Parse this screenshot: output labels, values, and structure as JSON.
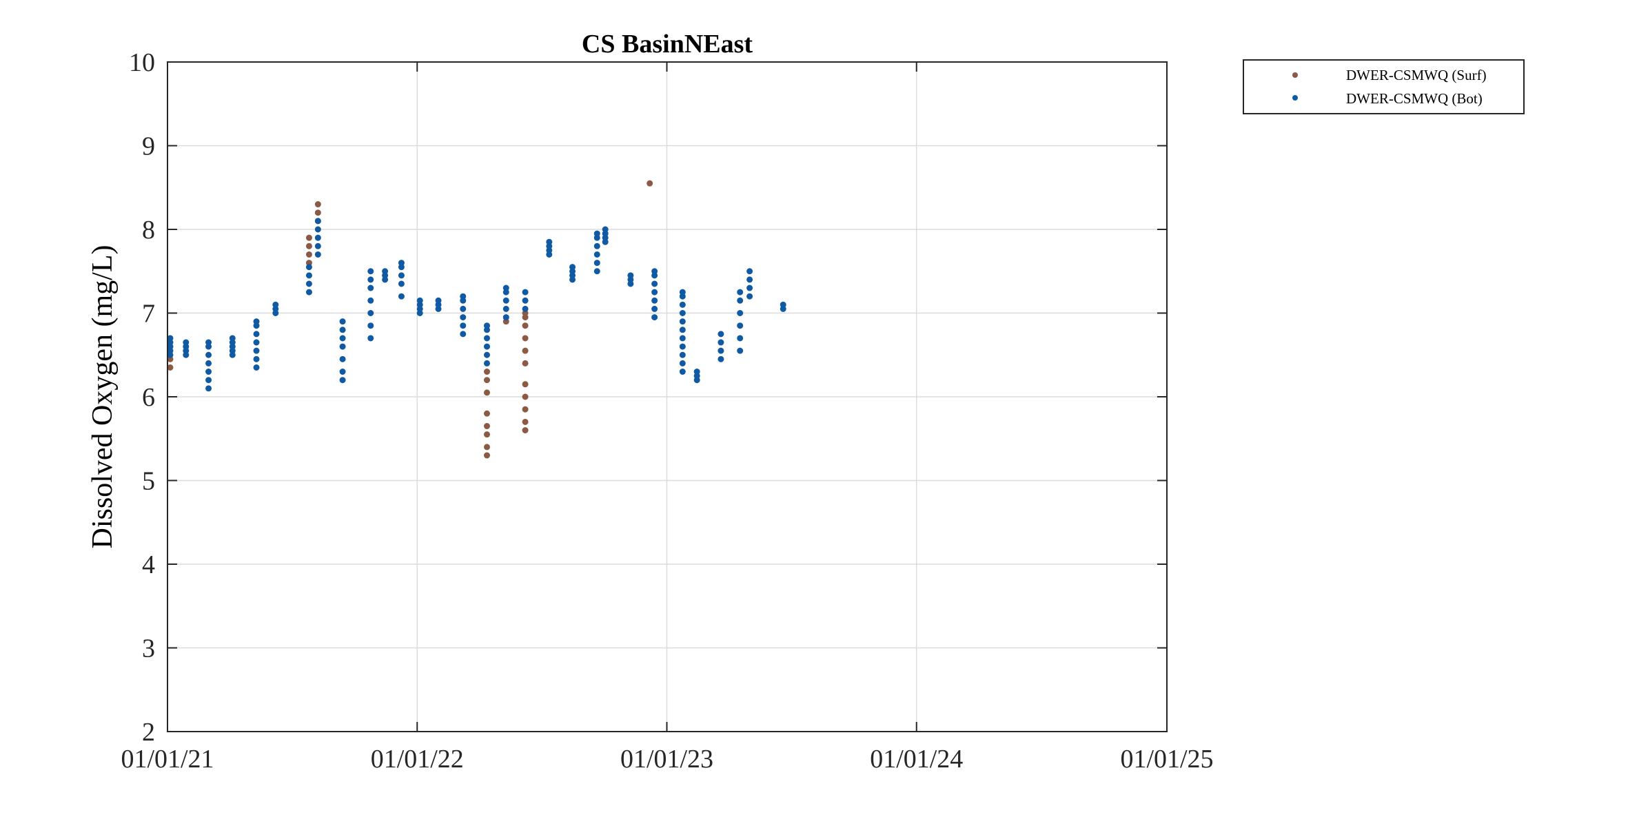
{
  "chart_data": {
    "type": "scatter",
    "title": "CS BasinNEast",
    "xlabel": "",
    "ylabel": "Dissolved Oxygen (mg/L)",
    "xlim": [
      "2021-01-01",
      "2025-01-01"
    ],
    "ylim": [
      2,
      10
    ],
    "x_ticks": [
      "2021-01-01",
      "2022-01-01",
      "2023-01-01",
      "2024-01-01",
      "2025-01-01"
    ],
    "x_tick_labels": [
      "01/01/21",
      "01/01/22",
      "01/01/23",
      "01/01/24",
      "01/01/25"
    ],
    "y_ticks": [
      2,
      3,
      4,
      5,
      6,
      7,
      8,
      9,
      10
    ],
    "y_tick_labels": [
      "2",
      "3",
      "4",
      "5",
      "6",
      "7",
      "8",
      "9",
      "10"
    ],
    "grid": true,
    "legend_position": "outside-top-right",
    "series": [
      {
        "name": "DWER-CSMWQ (Surf)",
        "color": "#8c5a44",
        "points": [
          {
            "x": "2021-01-05",
            "ys": [
              6.35,
              6.45
            ]
          },
          {
            "x": "2021-07-27",
            "ys": [
              7.6,
              7.7,
              7.8,
              7.9
            ]
          },
          {
            "x": "2021-08-09",
            "ys": [
              8.1,
              8.2,
              8.3
            ]
          },
          {
            "x": "2022-04-13",
            "ys": [
              5.3,
              5.4,
              5.55,
              5.65,
              5.8,
              6.05,
              6.2,
              6.3
            ]
          },
          {
            "x": "2022-05-11",
            "ys": [
              6.9
            ]
          },
          {
            "x": "2022-06-08",
            "ys": [
              5.6,
              5.7,
              5.85,
              6.0,
              6.15,
              6.4,
              6.55,
              6.7,
              6.85,
              6.95,
              7.0
            ]
          },
          {
            "x": "2022-12-07",
            "ys": [
              8.55
            ]
          }
        ]
      },
      {
        "name": "DWER-CSMWQ (Bot)",
        "color": "#0f5aa3",
        "points": [
          {
            "x": "2021-01-05",
            "ys": [
              6.5,
              6.55,
              6.6,
              6.65,
              6.7
            ]
          },
          {
            "x": "2021-01-28",
            "ys": [
              6.5,
              6.55,
              6.6,
              6.65
            ]
          },
          {
            "x": "2021-03-02",
            "ys": [
              6.1,
              6.2,
              6.3,
              6.4,
              6.5,
              6.6,
              6.65
            ]
          },
          {
            "x": "2021-04-06",
            "ys": [
              6.5,
              6.55,
              6.6,
              6.65,
              6.7
            ]
          },
          {
            "x": "2021-05-11",
            "ys": [
              6.35,
              6.45,
              6.55,
              6.65,
              6.75,
              6.85,
              6.9
            ]
          },
          {
            "x": "2021-06-08",
            "ys": [
              7.0,
              7.05,
              7.1
            ]
          },
          {
            "x": "2021-07-27",
            "ys": [
              7.25,
              7.35,
              7.45,
              7.55
            ]
          },
          {
            "x": "2021-08-09",
            "ys": [
              7.7,
              7.8,
              7.9,
              8.0,
              8.1
            ]
          },
          {
            "x": "2021-09-14",
            "ys": [
              6.2,
              6.3,
              6.45,
              6.6,
              6.7,
              6.8,
              6.9
            ]
          },
          {
            "x": "2021-10-25",
            "ys": [
              6.7,
              6.85,
              7.0,
              7.15,
              7.3,
              7.4,
              7.5
            ]
          },
          {
            "x": "2021-11-15",
            "ys": [
              7.4,
              7.45,
              7.5
            ]
          },
          {
            "x": "2021-12-09",
            "ys": [
              7.2,
              7.35,
              7.45,
              7.55,
              7.6
            ]
          },
          {
            "x": "2022-01-05",
            "ys": [
              7.0,
              7.05,
              7.1,
              7.15
            ]
          },
          {
            "x": "2022-02-01",
            "ys": [
              7.05,
              7.1,
              7.15
            ]
          },
          {
            "x": "2022-03-09",
            "ys": [
              6.75,
              6.85,
              6.95,
              7.05,
              7.15,
              7.2
            ]
          },
          {
            "x": "2022-04-13",
            "ys": [
              6.4,
              6.5,
              6.6,
              6.7,
              6.8,
              6.85
            ]
          },
          {
            "x": "2022-05-11",
            "ys": [
              6.95,
              7.05,
              7.15,
              7.25,
              7.3
            ]
          },
          {
            "x": "2022-06-08",
            "ys": [
              7.05,
              7.15,
              7.25
            ]
          },
          {
            "x": "2022-07-13",
            "ys": [
              7.7,
              7.75,
              7.8,
              7.85
            ]
          },
          {
            "x": "2022-08-16",
            "ys": [
              7.4,
              7.45,
              7.5,
              7.55
            ]
          },
          {
            "x": "2022-09-21",
            "ys": [
              7.5,
              7.6,
              7.7,
              7.8,
              7.9,
              7.95
            ]
          },
          {
            "x": "2022-10-03",
            "ys": [
              7.85,
              7.9,
              7.95,
              8.0
            ]
          },
          {
            "x": "2022-11-09",
            "ys": [
              7.35,
              7.4,
              7.45
            ]
          },
          {
            "x": "2022-12-14",
            "ys": [
              6.95,
              7.05,
              7.15,
              7.25,
              7.35,
              7.45,
              7.5
            ]
          },
          {
            "x": "2023-01-24",
            "ys": [
              6.3,
              6.4,
              6.5,
              6.6,
              6.7,
              6.8,
              6.9,
              7.0,
              7.1,
              7.2,
              7.25
            ]
          },
          {
            "x": "2023-02-14",
            "ys": [
              6.2,
              6.25,
              6.3
            ]
          },
          {
            "x": "2023-03-21",
            "ys": [
              6.45,
              6.55,
              6.65,
              6.75
            ]
          },
          {
            "x": "2023-04-18",
            "ys": [
              6.55,
              6.7,
              6.85,
              7.0,
              7.15,
              7.25
            ]
          },
          {
            "x": "2023-05-02",
            "ys": [
              7.2,
              7.3,
              7.4,
              7.5
            ]
          },
          {
            "x": "2023-06-20",
            "ys": [
              7.05,
              7.1
            ]
          }
        ]
      }
    ]
  }
}
